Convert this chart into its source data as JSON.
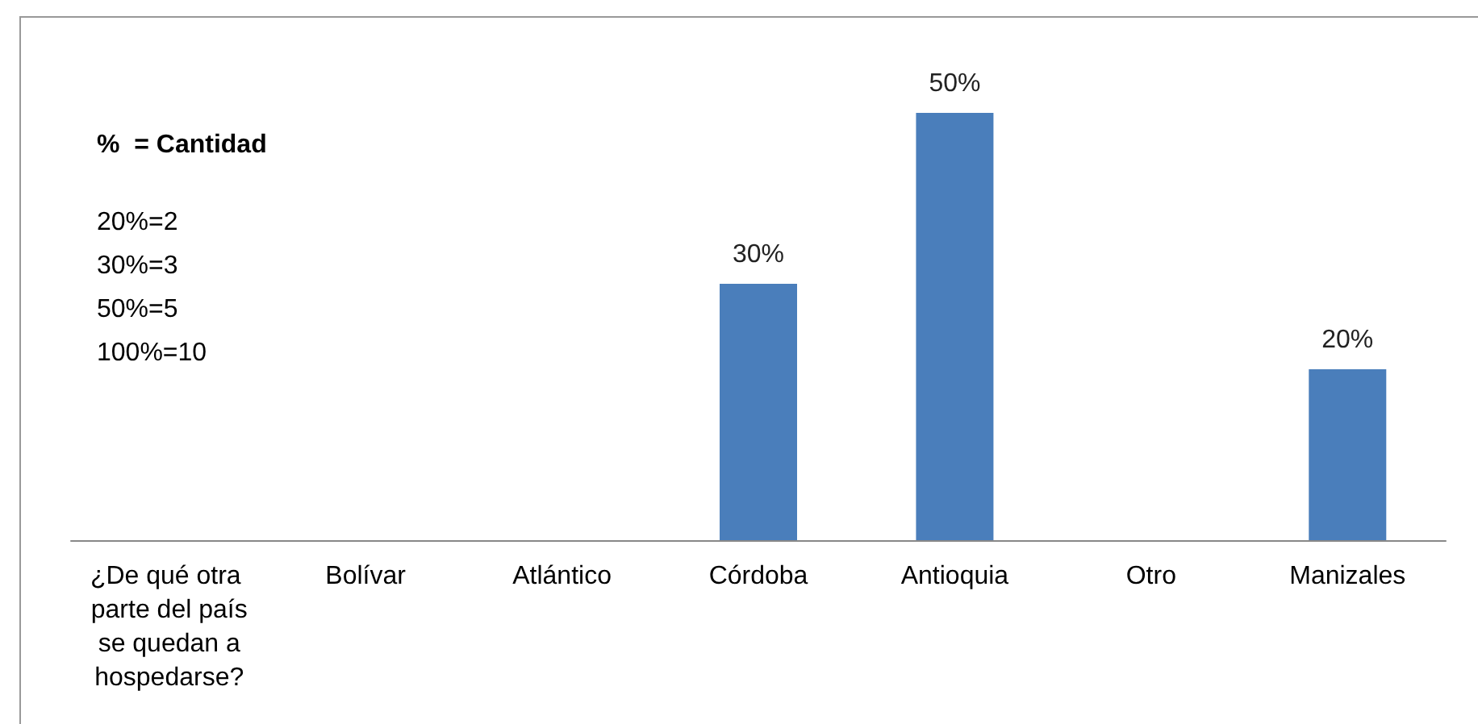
{
  "chart_data": {
    "type": "bar",
    "categories": [
      "¿De qué otra parte del país se quedan a hospedarse?",
      "Bolívar",
      "Atlántico",
      "Córdoba",
      "Antioquia",
      "Otro",
      "Manizales"
    ],
    "values": [
      null,
      null,
      null,
      30,
      50,
      null,
      20
    ],
    "value_labels": [
      null,
      null,
      null,
      "30%",
      "50%",
      null,
      "20%"
    ],
    "color": "#4a7ebb",
    "annotations": [
      "%  = Cantidad",
      "20%=2",
      "30%=3",
      "50%=5",
      "100%=10"
    ]
  }
}
